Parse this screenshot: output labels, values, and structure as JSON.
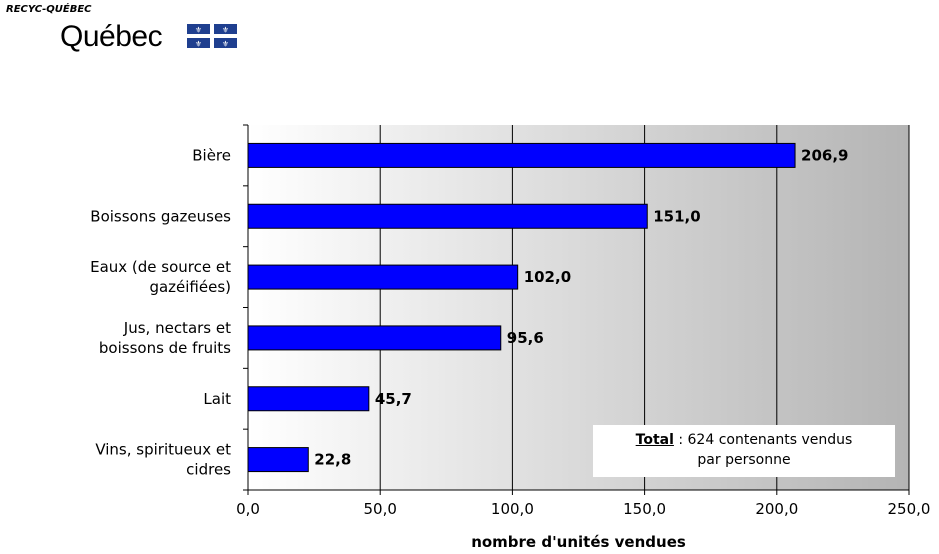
{
  "logo": {
    "small_text": "RECYC-QUÉBEC",
    "big_text": "Québec"
  },
  "total_note": {
    "label": "Total",
    "line1_rest": " : 624 contenants vendus",
    "line2": "par personne"
  },
  "chart_data": {
    "type": "bar",
    "orientation": "horizontal",
    "categories": [
      [
        "Bière"
      ],
      [
        "Boissons gazeuses"
      ],
      [
        "Eaux (de source et",
        "gazéifiées)"
      ],
      [
        "Jus, nectars et",
        "boissons de fruits"
      ],
      [
        "Lait"
      ],
      [
        "Vins, spiritueux et",
        "cidres"
      ]
    ],
    "values": [
      206.9,
      151.0,
      102.0,
      95.6,
      45.7,
      22.8
    ],
    "value_labels": [
      "206,9",
      "151,0",
      "102,0",
      "95,6",
      "45,7",
      "22,8"
    ],
    "xlim": [
      0,
      250
    ],
    "xticks": [
      0,
      50,
      100,
      150,
      200,
      250
    ],
    "xtick_labels": [
      "0,0",
      "50,0",
      "100,0",
      "150,0",
      "200,0",
      "250,0"
    ],
    "xlabel": "nombre d'unités vendues",
    "ylabel": "",
    "title": "",
    "grid": "vertical",
    "colors": {
      "bar": "#0000ff",
      "bar_stroke": "#000000",
      "grid": "#000000"
    }
  }
}
